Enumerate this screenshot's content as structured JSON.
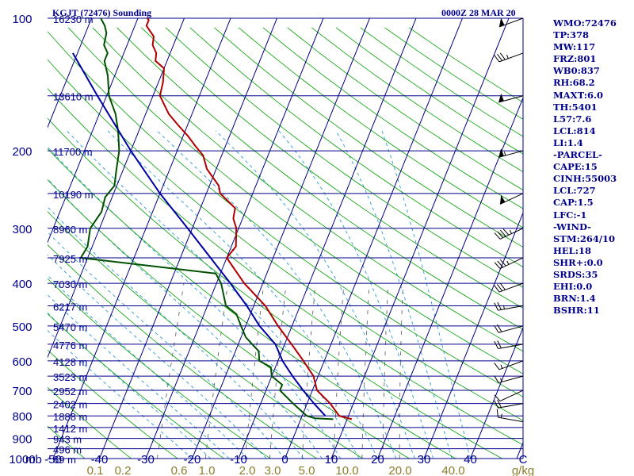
{
  "title": "KGJT (72476) Sounding",
  "timestamp": "0000Z 28 MAR 20",
  "units": {
    "pressure": "mb",
    "mixing_ratio": "g/kg"
  },
  "colors": {
    "background": "#ffffff",
    "isobar": "#00008b",
    "isotherm": "#000080",
    "dry_adiabat": "#00a000",
    "moist_adiabat": "#2a9ad6",
    "mixing_ratio": "#555555",
    "temperature": "#b00000",
    "dewpoint": "#005000",
    "parcel": "#0000a0",
    "label_text": "#00008b",
    "mixing_label_text": "#8b7d2a"
  },
  "indices": [
    "WMO:72476",
    "TP:378",
    "MW:117",
    "FRZ:801",
    "WB0:837",
    "RH:68.2",
    "MAXT:6.0",
    "TH:5401",
    "L57:7.6",
    "LCL:814",
    "LI:1.4",
    "-PARCEL-",
    "CAPE:15",
    "CINH:55003",
    "LCL:727",
    "CAP:1.5",
    "LFC:-1",
    "-WIND-",
    "STM:264/10",
    "HEL:18",
    "SHR+:0.0",
    "SRDS:35",
    "EHI:0.0",
    "BRN:1.4",
    "BSHR:11"
  ],
  "chart_data": {
    "type": "line",
    "chart_kind": "Skew-T log-P sounding",
    "title": "KGJT (72476) Sounding",
    "date": "0000Z 28 MAR 20",
    "xlabel": "Temperature (C)",
    "ylabel": "mb",
    "y_scale": "log (pressure, inverted)",
    "ylim": [
      1000,
      100
    ],
    "xlim_at_1000mb": [
      -50,
      50
    ],
    "pressure_tick_labels": [
      "100",
      "200",
      "300",
      "400",
      "500",
      "600",
      "700",
      "800",
      "900",
      "1000"
    ],
    "temperature_tick_labels": [
      "-50",
      "-40",
      "-30",
      "-20",
      "-10",
      "0",
      "10",
      "20",
      "30",
      "40",
      "C"
    ],
    "mixing_ratio_labels": [
      "0.1",
      "0.2",
      "0.6",
      "1.0",
      "2.0",
      "3.0",
      "5.0",
      "10.0",
      "20.0",
      "40.0",
      "g/kg"
    ],
    "height_labels": [
      {
        "pressure": 100,
        "label": "16230 m"
      },
      {
        "pressure": 150,
        "label": "13610 m"
      },
      {
        "pressure": 200,
        "label": "11700 m"
      },
      {
        "pressure": 250,
        "label": "10190 m"
      },
      {
        "pressure": 300,
        "label": "8960 m"
      },
      {
        "pressure": 350,
        "label": "7925 m"
      },
      {
        "pressure": 400,
        "label": "7030 m"
      },
      {
        "pressure": 450,
        "label": "6217 m"
      },
      {
        "pressure": 500,
        "label": "5470 m"
      },
      {
        "pressure": 550,
        "label": "4776 m"
      },
      {
        "pressure": 600,
        "label": "4128 m"
      },
      {
        "pressure": 650,
        "label": "3523 m"
      },
      {
        "pressure": 700,
        "label": "2952 m"
      },
      {
        "pressure": 750,
        "label": "2402 m"
      },
      {
        "pressure": 800,
        "label": "1888 m"
      },
      {
        "pressure": 850,
        "label": "1412 m"
      },
      {
        "pressure": 900,
        "label": "943 m"
      },
      {
        "pressure": 950,
        "label": "496 m"
      },
      {
        "pressure": 1000,
        "label": "69 m"
      }
    ],
    "series": [
      {
        "key": "temperature",
        "points": [
          [
            814,
            11.0
          ],
          [
            800,
            8.0
          ],
          [
            750,
            5.0
          ],
          [
            700,
            1.0
          ],
          [
            650,
            -1.0
          ],
          [
            600,
            -4.5
          ],
          [
            550,
            -8.5
          ],
          [
            500,
            -13.0
          ],
          [
            450,
            -17.5
          ],
          [
            400,
            -24.0
          ],
          [
            350,
            -30.0
          ],
          [
            330,
            -29.0
          ],
          [
            300,
            -30.5
          ],
          [
            285,
            -32.0
          ],
          [
            270,
            -32.5
          ],
          [
            250,
            -37.0
          ],
          [
            240,
            -38.0
          ],
          [
            220,
            -42.0
          ],
          [
            205,
            -44.0
          ],
          [
            195,
            -46.5
          ],
          [
            185,
            -49.0
          ],
          [
            175,
            -52.0
          ],
          [
            165,
            -55.0
          ],
          [
            150,
            -58.5
          ],
          [
            140,
            -59.0
          ],
          [
            130,
            -60.0
          ],
          [
            125,
            -62.5
          ],
          [
            120,
            -63.0
          ],
          [
            115,
            -64.5
          ],
          [
            110,
            -65.0
          ],
          [
            104,
            -67.5
          ],
          [
            101,
            -67.5
          ],
          [
            99,
            -68.5
          ]
        ]
      },
      {
        "key": "dewpoint",
        "points": [
          [
            814,
            7.0
          ],
          [
            810,
            3.0
          ],
          [
            800,
            1.0
          ],
          [
            750,
            -3.0
          ],
          [
            700,
            -7.0
          ],
          [
            680,
            -7.0
          ],
          [
            650,
            -10.0
          ],
          [
            620,
            -11.0
          ],
          [
            600,
            -14.0
          ],
          [
            570,
            -15.0
          ],
          [
            550,
            -17.0
          ],
          [
            530,
            -19.0
          ],
          [
            500,
            -21.0
          ],
          [
            470,
            -23.0
          ],
          [
            450,
            -26.0
          ],
          [
            400,
            -29.0
          ],
          [
            380,
            -31.0
          ],
          [
            350,
            -61.5
          ],
          [
            330,
            -61.0
          ],
          [
            300,
            -62.0
          ],
          [
            275,
            -61.0
          ],
          [
            255,
            -61.5
          ],
          [
            240,
            -60.5
          ],
          [
            220,
            -61.5
          ],
          [
            200,
            -62.5
          ],
          [
            180,
            -64.5
          ],
          [
            165,
            -66.5
          ],
          [
            150,
            -69.5
          ],
          [
            135,
            -71.5
          ],
          [
            125,
            -73.5
          ],
          [
            120,
            -73.5
          ],
          [
            115,
            -75.0
          ],
          [
            108,
            -75.5
          ],
          [
            104,
            -76.5
          ],
          [
            100,
            -78.0
          ],
          [
            98,
            -78.0
          ]
        ]
      },
      {
        "key": "parcel",
        "points": [
          [
            800,
            5.0
          ],
          [
            750,
            1.5
          ],
          [
            700,
            -2.0
          ],
          [
            650,
            -5.5
          ],
          [
            600,
            -9.0
          ],
          [
            550,
            -12.0
          ],
          [
            500,
            -17.0
          ],
          [
            450,
            -21.5
          ],
          [
            400,
            -27.0
          ],
          [
            350,
            -33.5
          ],
          [
            300,
            -41.0
          ],
          [
            250,
            -50.0
          ],
          [
            200,
            -60.0
          ],
          [
            150,
            -72.0
          ],
          [
            120,
            -81.0
          ]
        ]
      }
    ],
    "winds": [
      {
        "pressure": 825,
        "direction": 280,
        "speed": 15
      },
      {
        "pressure": 750,
        "direction": 260,
        "speed": 20
      },
      {
        "pressure": 700,
        "direction": 245,
        "speed": 10
      },
      {
        "pressure": 650,
        "direction": 255,
        "speed": 15
      },
      {
        "pressure": 600,
        "direction": 250,
        "speed": 15
      },
      {
        "pressure": 550,
        "direction": 260,
        "speed": 20
      },
      {
        "pressure": 500,
        "direction": 255,
        "speed": 20
      },
      {
        "pressure": 450,
        "direction": 260,
        "speed": 25
      },
      {
        "pressure": 400,
        "direction": 250,
        "speed": 30
      },
      {
        "pressure": 350,
        "direction": 245,
        "speed": 35
      },
      {
        "pressure": 300,
        "direction": 245,
        "speed": 45
      },
      {
        "pressure": 250,
        "direction": 245,
        "speed": 50
      },
      {
        "pressure": 200,
        "direction": 255,
        "speed": 55
      },
      {
        "pressure": 150,
        "direction": 255,
        "speed": 50
      },
      {
        "pressure": 120,
        "direction": 250,
        "speed": 35
      },
      {
        "pressure": 100,
        "direction": 250,
        "speed": 50
      }
    ]
  }
}
